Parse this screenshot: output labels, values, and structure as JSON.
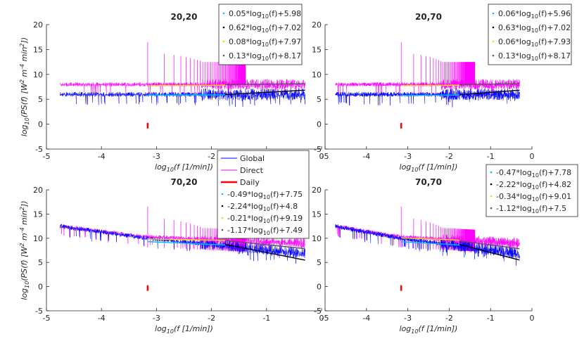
{
  "chart_data": [
    {
      "type": "line",
      "title": "20,20",
      "xlabel": "log10(f [1/min])",
      "ylabel": "log10(PS(f) [W2 m-4 min2])",
      "xlim": [
        -5,
        0
      ],
      "ylim": [
        -5,
        20
      ],
      "xticks": [
        "-5",
        "-4",
        "-3",
        "-2",
        "-1",
        "0"
      ],
      "yticks": [
        "-5",
        "0",
        "5",
        "10",
        "15",
        "20"
      ],
      "legend_position": "top-right",
      "series": [
        {
          "name": "Global",
          "color": "#0000ff",
          "start_level": 6.0,
          "slope": 0.0,
          "x_start": -4.75
        },
        {
          "name": "Direct",
          "color": "#ff00ff",
          "start_level": 8.0,
          "slope": 0.0,
          "x_start": -4.75
        }
      ],
      "daily_marker": {
        "x": -3.16,
        "y": -0.3,
        "color": "#ff0000"
      },
      "fits": [
        {
          "label": "0.05*log10(f)+5.98",
          "slope": 0.05,
          "intercept": 5.98,
          "x_range": [
            -3.16,
            -1.75
          ],
          "color": "#00bfff"
        },
        {
          "label": "0.62*log10(f)+7.02",
          "slope": 0.62,
          "intercept": 7.02,
          "x_range": [
            -1.75,
            -0.3
          ],
          "color": "#000000"
        },
        {
          "label": "0.08*log10(f)+7.97",
          "slope": 0.08,
          "intercept": 7.97,
          "x_range": [
            -3.16,
            -1.75
          ],
          "color": "#ffd700"
        },
        {
          "label": "0.13*log10(f)+8.17",
          "slope": 0.13,
          "intercept": 8.17,
          "x_range": [
            -1.75,
            -0.3
          ],
          "color": "#555555"
        }
      ]
    },
    {
      "type": "line",
      "title": "20,70",
      "xlabel": "log10(f [1/min])",
      "ylabel": "",
      "xlim": [
        -5,
        0
      ],
      "ylim": [
        -5,
        20
      ],
      "xticks": [
        "-5",
        "-4",
        "-3",
        "-2",
        "-1",
        "0"
      ],
      "yticks": [
        "-5",
        "0",
        "5",
        "10",
        "15",
        "20"
      ],
      "legend_position": "top-right",
      "series": [
        {
          "name": "Global",
          "color": "#0000ff",
          "start_level": 6.0,
          "slope": 0.0,
          "x_start": -4.75
        },
        {
          "name": "Direct",
          "color": "#ff00ff",
          "start_level": 8.0,
          "slope": 0.0,
          "x_start": -4.75
        }
      ],
      "daily_marker": {
        "x": -3.16,
        "y": -0.3,
        "color": "#ff0000"
      },
      "fits": [
        {
          "label": "0.06*log10(f)+5.96",
          "slope": 0.06,
          "intercept": 5.96,
          "x_range": [
            -3.16,
            -1.75
          ],
          "color": "#00bfff"
        },
        {
          "label": "0.63*log10(f)+7.02",
          "slope": 0.63,
          "intercept": 7.02,
          "x_range": [
            -1.75,
            -0.3
          ],
          "color": "#000000"
        },
        {
          "label": "0.06*log10(f)+7.93",
          "slope": 0.06,
          "intercept": 7.93,
          "x_range": [
            -3.16,
            -1.75
          ],
          "color": "#ffd700"
        },
        {
          "label": "0.13*log10(f)+8.17",
          "slope": 0.13,
          "intercept": 8.17,
          "x_range": [
            -1.75,
            -0.3
          ],
          "color": "#555555"
        }
      ]
    },
    {
      "type": "line",
      "title": "70,20",
      "xlabel": "log10(f [1/min])",
      "ylabel": "log10(PS(f) [W2 m-4 min2])",
      "xlim": [
        -5,
        0
      ],
      "ylim": [
        -5,
        20
      ],
      "xticks": [
        "-5",
        "-4",
        "-3",
        "-2",
        "-1",
        "0"
      ],
      "yticks": [
        "-5",
        "0",
        "5",
        "10",
        "15",
        "20"
      ],
      "legend_position": "right",
      "series_legend": [
        "Global",
        "Direct",
        "Daily"
      ],
      "series": [
        {
          "name": "Global",
          "color": "#0000ff",
          "start_level": 12.5,
          "slope": -1.2,
          "x_start": -4.75
        },
        {
          "name": "Direct",
          "color": "#ff00ff",
          "start_level": 12.5,
          "slope": -0.5,
          "x_start": -4.75
        }
      ],
      "daily_marker": {
        "x": -3.16,
        "y": -0.3,
        "color": "#ff0000"
      },
      "fits": [
        {
          "label": "-0.49*log10(f)+7.75",
          "slope": -0.49,
          "intercept": 7.75,
          "x_range": [
            -3.16,
            -1.75
          ],
          "color": "#00bfff"
        },
        {
          "label": "-2.24*log10(f)+4.8",
          "slope": -2.24,
          "intercept": 4.8,
          "x_range": [
            -1.75,
            -0.3
          ],
          "color": "#000000"
        },
        {
          "label": "-0.21*log10(f)+9.19",
          "slope": -0.21,
          "intercept": 9.19,
          "x_range": [
            -3.16,
            -1.75
          ],
          "color": "#ffd700"
        },
        {
          "label": "-1.17*log10(f)+7.49",
          "slope": -1.17,
          "intercept": 7.49,
          "x_range": [
            -1.75,
            -0.3
          ],
          "color": "#555555"
        }
      ]
    },
    {
      "type": "line",
      "title": "70,70",
      "xlabel": "log10(f [1/min])",
      "ylabel": "",
      "xlim": [
        -5,
        0
      ],
      "ylim": [
        -5,
        20
      ],
      "xticks": [
        "-5",
        "-4",
        "-3",
        "-2",
        "-1",
        "0"
      ],
      "yticks": [
        "-5",
        "0",
        "5",
        "10",
        "15",
        "20"
      ],
      "legend_position": "top-right",
      "series": [
        {
          "name": "Global",
          "color": "#0000ff",
          "start_level": 12.5,
          "slope": -1.2,
          "x_start": -4.75
        },
        {
          "name": "Direct",
          "color": "#ff00ff",
          "start_level": 12.5,
          "slope": -0.5,
          "x_start": -4.75
        }
      ],
      "daily_marker": {
        "x": -3.16,
        "y": -0.3,
        "color": "#ff0000"
      },
      "fits": [
        {
          "label": "-0.47*log10(f)+7.78",
          "slope": -0.47,
          "intercept": 7.78,
          "x_range": [
            -3.16,
            -1.75
          ],
          "color": "#00bfff"
        },
        {
          "label": "-2.22*log10(f)+4.82",
          "slope": -2.22,
          "intercept": 4.82,
          "x_range": [
            -1.75,
            -0.3
          ],
          "color": "#000000"
        },
        {
          "label": "-0.34*log10(f)+9.01",
          "slope": -0.34,
          "intercept": 9.01,
          "x_range": [
            -3.16,
            -1.75
          ],
          "color": "#ffd700"
        },
        {
          "label": "-1.12*log10(f)+7.5",
          "slope": -1.12,
          "intercept": 7.5,
          "x_range": [
            -1.75,
            -0.3
          ],
          "color": "#555555"
        }
      ]
    }
  ]
}
